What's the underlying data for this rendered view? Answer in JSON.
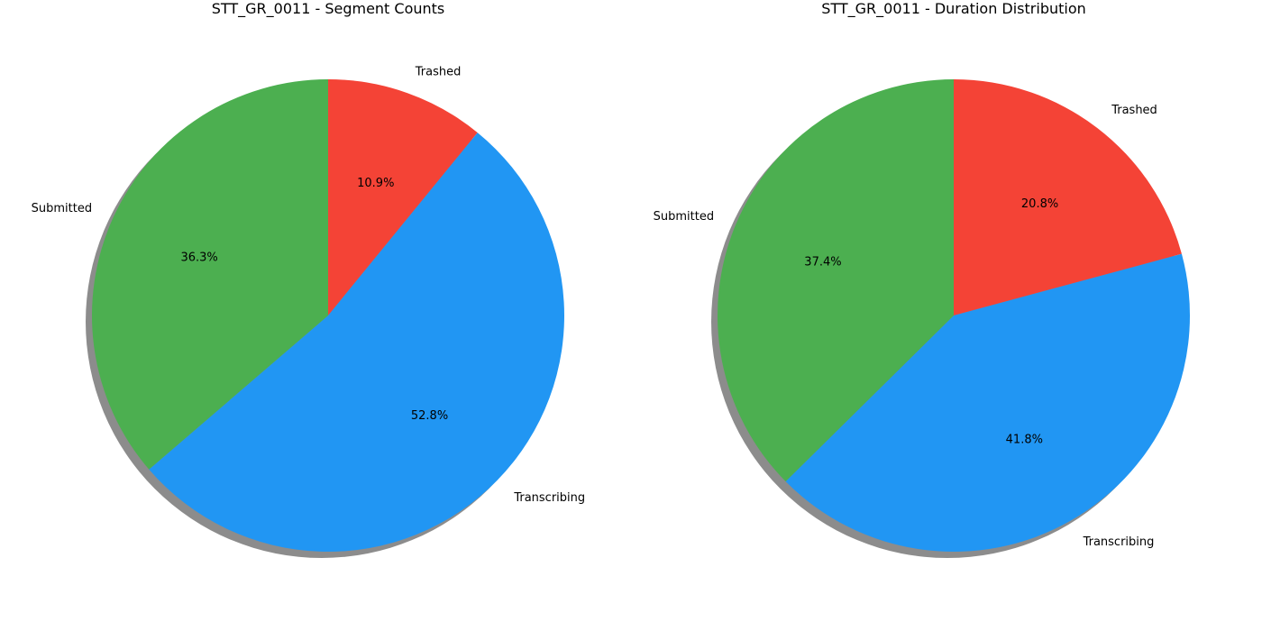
{
  "chart_data": [
    {
      "type": "pie",
      "title": "STT_GR_0011 - Segment Counts",
      "categories": [
        "Trashed",
        "Transcribing",
        "Submitted"
      ],
      "values": [
        10.9,
        52.8,
        36.3
      ],
      "value_labels": [
        "10.9%",
        "52.8%",
        "36.3%"
      ],
      "colors": [
        "#f44336",
        "#2196f3",
        "#4caf50"
      ],
      "start_angle_deg": 90,
      "direction": "clockwise",
      "shadow": true,
      "legend": "none"
    },
    {
      "type": "pie",
      "title": "STT_GR_0011 - Duration Distribution",
      "categories": [
        "Trashed",
        "Transcribing",
        "Submitted"
      ],
      "values": [
        20.8,
        41.8,
        37.4
      ],
      "value_labels": [
        "20.8%",
        "41.8%",
        "37.4%"
      ],
      "colors": [
        "#f44336",
        "#2196f3",
        "#4caf50"
      ],
      "start_angle_deg": 90,
      "direction": "clockwise",
      "shadow": true,
      "legend": "none"
    }
  ]
}
